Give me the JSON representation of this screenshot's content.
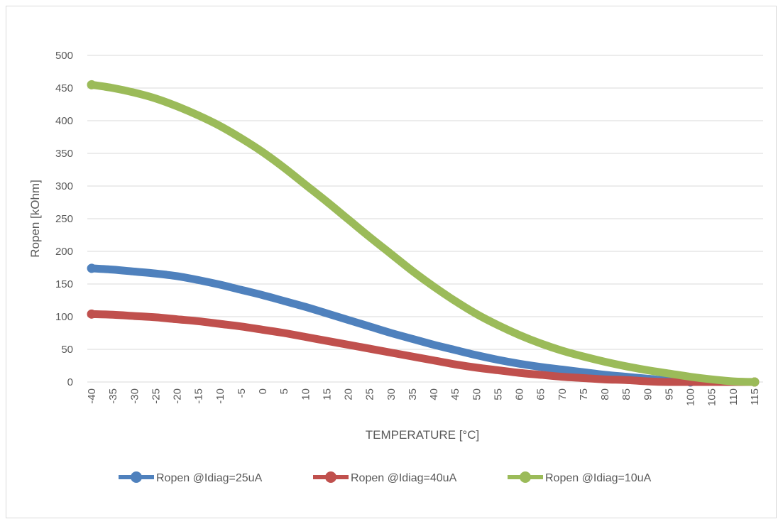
{
  "chart_data": {
    "type": "line",
    "title": "",
    "xlabel": "TEMPERATURE [°C]",
    "ylabel": "Ropen [kOhm]",
    "ylim": [
      0,
      500
    ],
    "yticks": [
      0,
      50,
      100,
      150,
      200,
      250,
      300,
      350,
      400,
      450,
      500
    ],
    "xticks": [
      -40,
      -35,
      -30,
      -25,
      -20,
      -15,
      -10,
      -5,
      0,
      5,
      10,
      15,
      20,
      25,
      30,
      35,
      40,
      45,
      50,
      55,
      60,
      65,
      70,
      75,
      80,
      85,
      90,
      95,
      100,
      105,
      110,
      115
    ],
    "xlim": [
      -41,
      117
    ],
    "grid": "horizontal",
    "legend": "bottom",
    "series": [
      {
        "name": "Ropen @Idiag=25uA",
        "color": "#4f81bd",
        "x": [
          -40,
          -35,
          -30,
          -25,
          -20,
          -15,
          -10,
          -5,
          0,
          5,
          10,
          15,
          20,
          25,
          30,
          35,
          40,
          45,
          50,
          55,
          60,
          65,
          70,
          75,
          80,
          85,
          90,
          95,
          100
        ],
        "values": [
          174,
          172,
          169,
          166,
          162,
          156,
          149,
          141,
          133,
          124,
          115,
          105,
          95,
          85,
          75,
          66,
          57,
          49,
          41,
          34,
          28,
          23,
          19,
          15,
          11,
          8,
          5,
          2,
          0
        ]
      },
      {
        "name": "Ropen @Idiag=40uA",
        "color": "#c0504d",
        "x": [
          -40,
          -35,
          -30,
          -25,
          -20,
          -15,
          -10,
          -5,
          0,
          5,
          10,
          15,
          20,
          25,
          30,
          35,
          40,
          45,
          50,
          55,
          60,
          65,
          70,
          75,
          80,
          85,
          90,
          95,
          100,
          105,
          110,
          115
        ],
        "values": [
          104,
          103,
          101,
          99,
          96,
          93,
          89,
          85,
          80,
          75,
          69,
          63,
          57,
          51,
          45,
          39,
          33,
          27,
          22,
          18,
          14,
          11,
          8,
          6,
          4,
          3,
          1,
          0,
          0,
          0,
          0,
          0
        ]
      },
      {
        "name": "Ropen @Idiag=10uA",
        "color": "#9bbb59",
        "x": [
          -40,
          -35,
          -30,
          -25,
          -20,
          -15,
          -10,
          -5,
          0,
          5,
          10,
          15,
          20,
          25,
          30,
          35,
          40,
          45,
          50,
          55,
          60,
          65,
          70,
          75,
          80,
          85,
          90,
          95,
          100,
          105,
          110,
          115
        ],
        "values": [
          455,
          450,
          443,
          434,
          422,
          408,
          392,
          373,
          352,
          328,
          302,
          276,
          249,
          222,
          196,
          170,
          146,
          124,
          104,
          87,
          72,
          59,
          48,
          39,
          31,
          24,
          18,
          13,
          8,
          4,
          1,
          0
        ]
      }
    ]
  }
}
